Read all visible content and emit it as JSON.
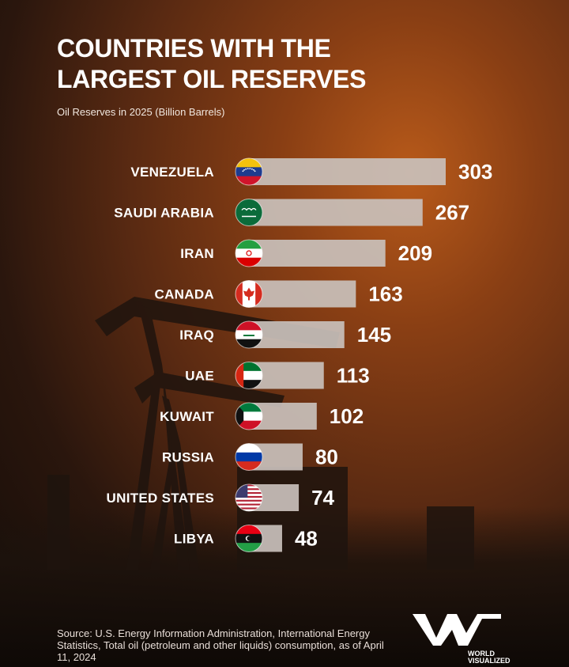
{
  "title": "COUNTRIES WITH THE\nLARGEST OIL RESERVES",
  "subtitle": "Oil Reserves in 2025 (Billion Barrels)",
  "source": "Source: U.S. Energy Information Administration, International Energy Statistics, Total oil (petroleum and other liquids) consumption, as of April 11, 2024",
  "brand": {
    "name": "WORLD VISUALIZED",
    "mark": "W"
  },
  "colors": {
    "bar": "#c9c0bb",
    "text": "#ffffff",
    "background": "#5a2a12"
  },
  "chart_data": {
    "type": "bar",
    "orientation": "horizontal",
    "title": "COUNTRIES WITH THE LARGEST OIL RESERVES",
    "subtitle": "Oil Reserves in 2025 (Billion Barrels)",
    "categories": [
      "VENEZUELA",
      "SAUDI ARABIA",
      "IRAN",
      "CANADA",
      "IRAQ",
      "UAE",
      "KUWAIT",
      "RUSSIA",
      "UNITED STATES",
      "LIBYA"
    ],
    "values": [
      303,
      267,
      209,
      163,
      145,
      113,
      102,
      80,
      74,
      48
    ],
    "flags": [
      "flag-venezuela",
      "flag-saudi-arabia",
      "flag-iran",
      "flag-canada",
      "flag-iraq",
      "flag-uae",
      "flag-kuwait",
      "flag-russia",
      "flag-united-states",
      "flag-libya"
    ],
    "value_labels": "outside-end",
    "grid": false,
    "legend": "none"
  }
}
